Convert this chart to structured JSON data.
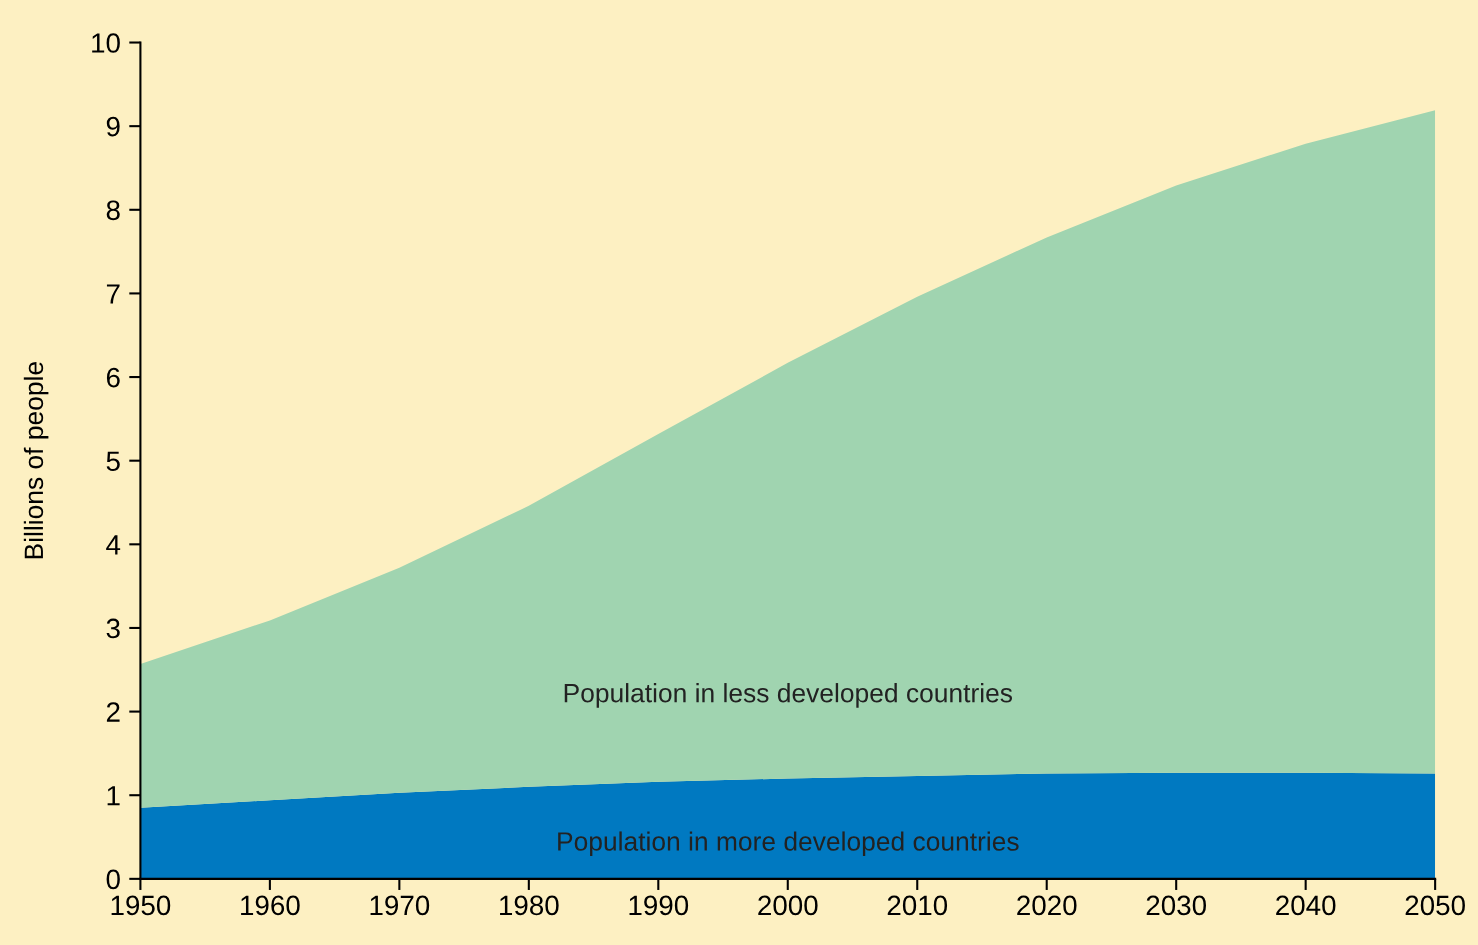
{
  "chart_data": {
    "type": "area",
    "stacked": true,
    "ylabel": "Billions of people",
    "x": [
      1950,
      1960,
      1970,
      1980,
      1990,
      2000,
      2010,
      2020,
      2030,
      2040,
      2050
    ],
    "series": [
      {
        "name": "Population in more developed countries",
        "color": "#0079c1",
        "values": [
          0.85,
          0.94,
          1.03,
          1.1,
          1.16,
          1.2,
          1.23,
          1.26,
          1.27,
          1.27,
          1.26
        ]
      },
      {
        "name": "Population in less developed countries",
        "color": "#a0d4b0",
        "values": [
          1.72,
          2.15,
          2.69,
          3.36,
          4.16,
          4.97,
          5.73,
          6.41,
          7.02,
          7.52,
          7.93
        ]
      }
    ],
    "xlim": [
      1950,
      2050
    ],
    "xticks": [
      1950,
      1960,
      1970,
      1980,
      1990,
      2000,
      2010,
      2020,
      2030,
      2040,
      2050
    ],
    "ylim": [
      0,
      10
    ],
    "yticks": [
      0,
      1,
      2,
      3,
      4,
      5,
      6,
      7,
      8,
      9,
      10
    ],
    "grid": false,
    "legend": false
  }
}
